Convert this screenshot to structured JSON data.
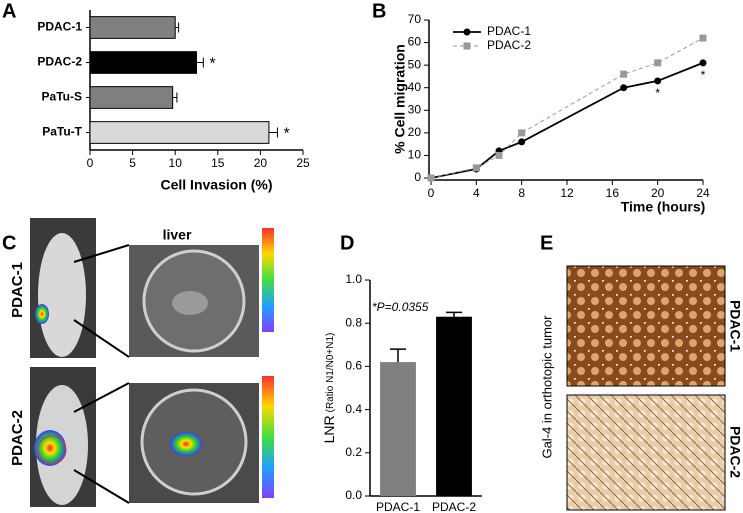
{
  "chart_data": [
    {
      "type": "hbar",
      "panel": "A",
      "xlabel": "Cell Invasion (%)",
      "categories": [
        "PDAC-1",
        "PDAC-2",
        "PaTu-S",
        "PaTu-T"
      ],
      "values": [
        10,
        12.5,
        9.7,
        21
      ],
      "errors": [
        0.4,
        0.8,
        0.5,
        1.0
      ],
      "colors": [
        "#808080",
        "#000000",
        "#7f7f7f",
        "#d9d9d9"
      ],
      "significance": [
        null,
        "*",
        null,
        "*"
      ],
      "xlim": [
        0,
        25
      ],
      "xticks": [
        0,
        5,
        10,
        15,
        20,
        25
      ]
    },
    {
      "type": "line",
      "panel": "B",
      "xlabel": "Time (hours)",
      "ylabel": "% Cell migration",
      "x": [
        0,
        4,
        6,
        8,
        17,
        20,
        24
      ],
      "series": [
        {
          "name": "PDAC-1",
          "color": "#000000",
          "marker": "circle",
          "dashed": false,
          "values": [
            0,
            4,
            12,
            16,
            40,
            43,
            51
          ],
          "significance": [
            null,
            null,
            null,
            null,
            null,
            "*",
            "*"
          ]
        },
        {
          "name": "PDAC-2",
          "color": "#999999",
          "marker": "square",
          "dashed": true,
          "values": [
            0,
            4.5,
            10,
            20,
            46,
            51,
            62
          ]
        }
      ],
      "xlim": [
        0,
        24
      ],
      "xticks": [
        0,
        4,
        8,
        12,
        16,
        20,
        24
      ],
      "ylim": [
        0,
        70
      ],
      "yticks": [
        0,
        10,
        20,
        30,
        40,
        50,
        60,
        70
      ],
      "legend": "top-left"
    },
    {
      "type": "bar",
      "panel": "D",
      "ylabel": "LNR",
      "ylabel_sub": "(Ratio N1/N0+N1)",
      "annotation": "*P=0.0355",
      "categories": [
        "PDAC-1",
        "PDAC-2"
      ],
      "values": [
        0.62,
        0.83
      ],
      "errors": [
        0.06,
        0.02
      ],
      "colors": [
        "#808080",
        "#000000"
      ],
      "ylim": [
        0,
        1.0
      ],
      "yticks": [
        {
          "value": 0,
          "label": "0.0"
        },
        0.2,
        0.4,
        0.6,
        0.8,
        {
          "value": 1.0,
          "label": "1.0"
        }
      ]
    }
  ],
  "panel_c": {
    "panel": "C",
    "title": "liver",
    "rows": [
      "PDAC-1",
      "PDAC-2"
    ]
  },
  "panel_e": {
    "panel": "E",
    "ylabel": "Gal-4 in orthotopic tumor",
    "rows": [
      "PDAC-1",
      "PDAC-2"
    ]
  }
}
